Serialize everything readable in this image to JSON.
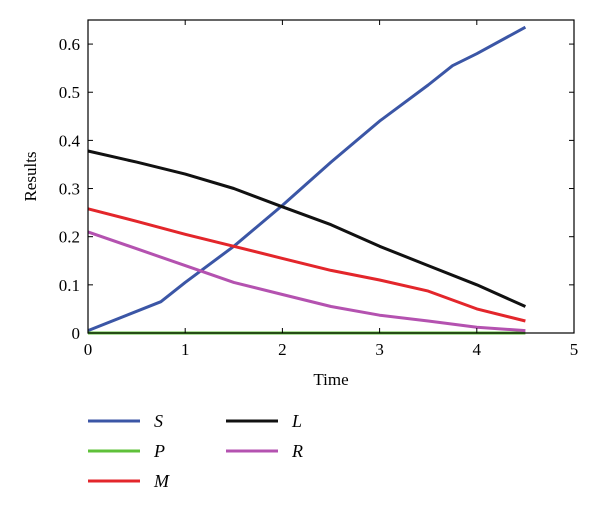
{
  "chart_data": {
    "type": "line",
    "title": "",
    "xlabel": "Time",
    "ylabel": "Results",
    "xlim": [
      0,
      5
    ],
    "ylim": [
      0,
      0.65
    ],
    "xticks": [
      "0",
      "1",
      "2",
      "3",
      "4",
      "5"
    ],
    "yticks": [
      "0",
      "0.1",
      "0.2",
      "0.3",
      "0.4",
      "0.5",
      "0.6"
    ],
    "grid": false,
    "legend_position": "below",
    "series": [
      {
        "name": "S",
        "color": "#3b56a6",
        "x": [
          0,
          0.75,
          1.0,
          1.5,
          2.0,
          2.5,
          3.0,
          3.5,
          3.75,
          4.0,
          4.5
        ],
        "y": [
          0.005,
          0.065,
          0.105,
          0.18,
          0.265,
          0.355,
          0.44,
          0.515,
          0.555,
          0.58,
          0.635
        ]
      },
      {
        "name": "P",
        "color": "#5fc13a",
        "x": [
          0,
          4.5
        ],
        "y": [
          0.0,
          0.0
        ]
      },
      {
        "name": "M",
        "color": "#e3262b",
        "x": [
          0,
          0.5,
          1.0,
          1.5,
          2.0,
          2.5,
          3.0,
          3.5,
          4.0,
          4.5
        ],
        "y": [
          0.258,
          0.232,
          0.205,
          0.18,
          0.155,
          0.13,
          0.11,
          0.087,
          0.05,
          0.025
        ]
      },
      {
        "name": "L",
        "color": "#111111",
        "x": [
          0,
          0.5,
          1.0,
          1.5,
          2.0,
          2.5,
          3.0,
          3.5,
          4.0,
          4.5
        ],
        "y": [
          0.378,
          0.355,
          0.33,
          0.3,
          0.262,
          0.225,
          0.18,
          0.14,
          0.1,
          0.055
        ]
      },
      {
        "name": "R",
        "color": "#b452b0",
        "x": [
          0,
          0.5,
          1.0,
          1.5,
          2.0,
          2.5,
          3.0,
          3.5,
          4.0,
          4.5
        ],
        "y": [
          0.21,
          0.175,
          0.14,
          0.105,
          0.08,
          0.055,
          0.037,
          0.025,
          0.012,
          0.005
        ]
      }
    ]
  }
}
